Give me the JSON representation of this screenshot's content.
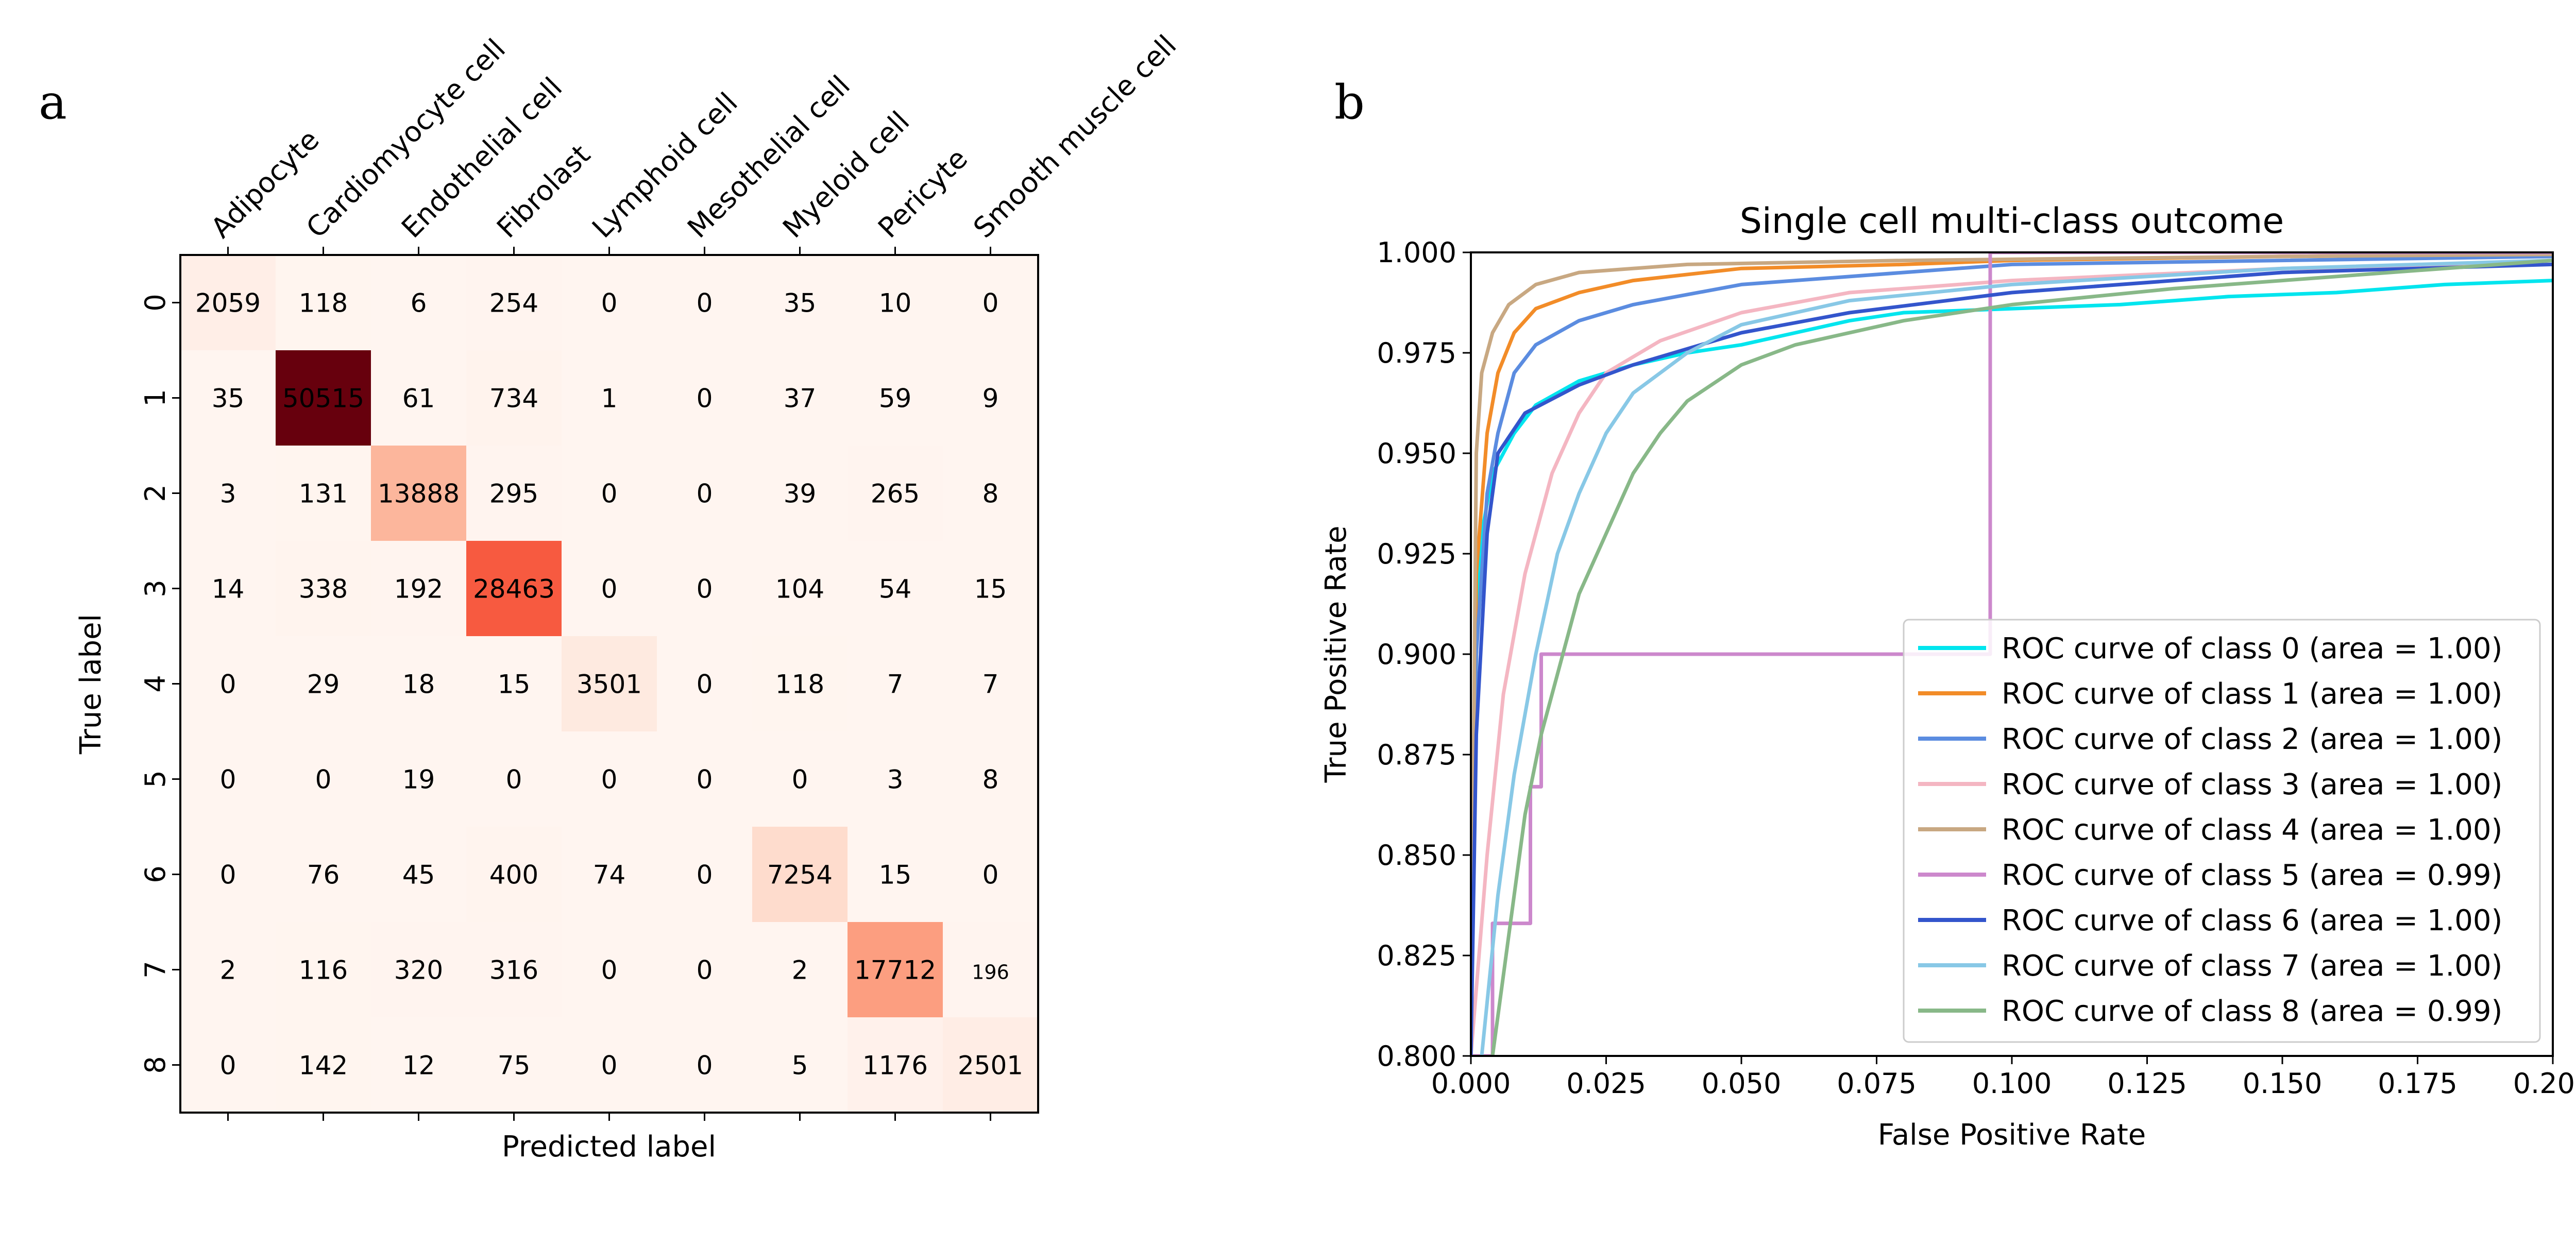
{
  "panels": {
    "a": "a",
    "b": "b"
  },
  "chart_data": [
    {
      "type": "heatmap",
      "title": "",
      "xlabel": "Predicted label",
      "ylabel": "True label",
      "col_labels": [
        "Adipocyte",
        "Cardiomyocyte cell",
        "Endothelial cell",
        "Fibrolast",
        "Lymphoid cell",
        "Mesothelial cell",
        "Myeloid cell",
        "Pericyte",
        "Smooth muscle cell"
      ],
      "row_labels": [
        "0",
        "1",
        "2",
        "3",
        "4",
        "5",
        "6",
        "7",
        "8"
      ],
      "colormap": "Reds",
      "values": [
        [
          2059,
          118,
          6,
          254,
          0,
          0,
          35,
          10,
          0
        ],
        [
          35,
          50515,
          61,
          734,
          1,
          0,
          37,
          59,
          9
        ],
        [
          3,
          131,
          13888,
          295,
          0,
          0,
          39,
          265,
          8
        ],
        [
          14,
          338,
          192,
          28463,
          0,
          0,
          104,
          54,
          15
        ],
        [
          0,
          29,
          18,
          15,
          3501,
          0,
          118,
          7,
          7
        ],
        [
          0,
          0,
          19,
          0,
          0,
          0,
          0,
          3,
          8
        ],
        [
          0,
          76,
          45,
          400,
          74,
          0,
          7254,
          15,
          0
        ],
        [
          2,
          116,
          320,
          316,
          0,
          0,
          2,
          17712,
          196
        ],
        [
          0,
          142,
          12,
          75,
          0,
          0,
          5,
          1176,
          2501
        ]
      ]
    },
    {
      "type": "line",
      "title": "Single cell multi-class outcome",
      "xlabel": "False Positive Rate",
      "ylabel": "True Positive Rate",
      "xlim": [
        0.0,
        0.2
      ],
      "ylim": [
        0.8,
        1.0
      ],
      "xticks": [
        "0.000",
        "0.025",
        "0.050",
        "0.075",
        "0.100",
        "0.125",
        "0.150",
        "0.175",
        "0.200"
      ],
      "yticks": [
        "0.800",
        "0.825",
        "0.850",
        "0.875",
        "0.900",
        "0.925",
        "0.950",
        "0.975",
        "1.000"
      ],
      "legend_position": "lower-right",
      "series": [
        {
          "name": "ROC curve of class 0 (area = 1.00)",
          "color": "#00e5ee",
          "points": [
            [
              0.0,
              0.8
            ],
            [
              0.001,
              0.9
            ],
            [
              0.002,
              0.93
            ],
            [
              0.004,
              0.945
            ],
            [
              0.008,
              0.955
            ],
            [
              0.012,
              0.962
            ],
            [
              0.02,
              0.968
            ],
            [
              0.03,
              0.972
            ],
            [
              0.04,
              0.975
            ],
            [
              0.05,
              0.977
            ],
            [
              0.06,
              0.98
            ],
            [
              0.07,
              0.983
            ],
            [
              0.08,
              0.985
            ],
            [
              0.1,
              0.986
            ],
            [
              0.12,
              0.987
            ],
            [
              0.13,
              0.988
            ],
            [
              0.14,
              0.989
            ],
            [
              0.16,
              0.99
            ],
            [
              0.18,
              0.992
            ],
            [
              0.2,
              0.993
            ]
          ]
        },
        {
          "name": "ROC curve of class 1 (area = 1.00)",
          "color": "#f28c28",
          "points": [
            [
              0.0,
              0.8
            ],
            [
              0.001,
              0.92
            ],
            [
              0.003,
              0.955
            ],
            [
              0.005,
              0.97
            ],
            [
              0.008,
              0.98
            ],
            [
              0.012,
              0.986
            ],
            [
              0.02,
              0.99
            ],
            [
              0.03,
              0.993
            ],
            [
              0.05,
              0.996
            ],
            [
              0.08,
              0.997
            ],
            [
              0.1,
              0.998
            ],
            [
              0.15,
              0.999
            ],
            [
              0.2,
              0.9995
            ]
          ]
        },
        {
          "name": "ROC curve of class 2 (area = 1.00)",
          "color": "#5b8ce0",
          "points": [
            [
              0.0,
              0.8
            ],
            [
              0.001,
              0.9
            ],
            [
              0.003,
              0.94
            ],
            [
              0.005,
              0.955
            ],
            [
              0.008,
              0.97
            ],
            [
              0.012,
              0.977
            ],
            [
              0.02,
              0.983
            ],
            [
              0.03,
              0.987
            ],
            [
              0.05,
              0.992
            ],
            [
              0.08,
              0.995
            ],
            [
              0.1,
              0.997
            ],
            [
              0.15,
              0.998
            ],
            [
              0.2,
              0.999
            ]
          ]
        },
        {
          "name": "ROC curve of class 3 (area = 1.00)",
          "color": "#f4b6c2",
          "points": [
            [
              0.0,
              0.8
            ],
            [
              0.003,
              0.85
            ],
            [
              0.006,
              0.89
            ],
            [
              0.01,
              0.92
            ],
            [
              0.015,
              0.945
            ],
            [
              0.02,
              0.96
            ],
            [
              0.025,
              0.97
            ],
            [
              0.035,
              0.978
            ],
            [
              0.05,
              0.985
            ],
            [
              0.07,
              0.99
            ],
            [
              0.1,
              0.993
            ],
            [
              0.15,
              0.996
            ],
            [
              0.2,
              0.997
            ]
          ]
        },
        {
          "name": "ROC curve of class 4 (area = 1.00)",
          "color": "#c8a882",
          "points": [
            [
              0.0,
              0.8
            ],
            [
              0.001,
              0.95
            ],
            [
              0.002,
              0.97
            ],
            [
              0.004,
              0.98
            ],
            [
              0.007,
              0.987
            ],
            [
              0.012,
              0.992
            ],
            [
              0.02,
              0.995
            ],
            [
              0.04,
              0.997
            ],
            [
              0.08,
              0.998
            ],
            [
              0.15,
              0.999
            ],
            [
              0.2,
              0.9995
            ]
          ]
        },
        {
          "name": "ROC curve of class 5 (area = 0.99)",
          "color": "#cc88cc",
          "points": [
            [
              0.0,
              0.8
            ],
            [
              0.004,
              0.8
            ],
            [
              0.004,
              0.833
            ],
            [
              0.011,
              0.833
            ],
            [
              0.011,
              0.867
            ],
            [
              0.013,
              0.867
            ],
            [
              0.013,
              0.9
            ],
            [
              0.096,
              0.9
            ],
            [
              0.096,
              1.0
            ],
            [
              0.2,
              1.0
            ]
          ]
        },
        {
          "name": "ROC curve of class 6 (area = 1.00)",
          "color": "#3355cc",
          "points": [
            [
              0.0,
              0.8
            ],
            [
              0.001,
              0.88
            ],
            [
              0.003,
              0.93
            ],
            [
              0.005,
              0.95
            ],
            [
              0.01,
              0.96
            ],
            [
              0.02,
              0.967
            ],
            [
              0.03,
              0.972
            ],
            [
              0.05,
              0.98
            ],
            [
              0.07,
              0.985
            ],
            [
              0.1,
              0.99
            ],
            [
              0.15,
              0.995
            ],
            [
              0.2,
              0.997
            ]
          ]
        },
        {
          "name": "ROC curve of class 7 (area = 1.00)",
          "color": "#88c8e6",
          "points": [
            [
              0.002,
              0.8
            ],
            [
              0.005,
              0.84
            ],
            [
              0.008,
              0.87
            ],
            [
              0.012,
              0.9
            ],
            [
              0.016,
              0.925
            ],
            [
              0.02,
              0.94
            ],
            [
              0.025,
              0.955
            ],
            [
              0.03,
              0.965
            ],
            [
              0.04,
              0.975
            ],
            [
              0.05,
              0.982
            ],
            [
              0.07,
              0.988
            ],
            [
              0.1,
              0.992
            ],
            [
              0.15,
              0.996
            ],
            [
              0.2,
              0.998
            ]
          ]
        },
        {
          "name": "ROC curve of class 8 (area = 0.99)",
          "color": "#88b888",
          "points": [
            [
              0.004,
              0.8
            ],
            [
              0.007,
              0.83
            ],
            [
              0.01,
              0.86
            ],
            [
              0.013,
              0.88
            ],
            [
              0.017,
              0.9
            ],
            [
              0.02,
              0.915
            ],
            [
              0.025,
              0.93
            ],
            [
              0.03,
              0.945
            ],
            [
              0.035,
              0.955
            ],
            [
              0.04,
              0.963
            ],
            [
              0.05,
              0.972
            ],
            [
              0.06,
              0.977
            ],
            [
              0.08,
              0.983
            ],
            [
              0.1,
              0.987
            ],
            [
              0.13,
              0.991
            ],
            [
              0.15,
              0.993
            ],
            [
              0.18,
              0.996
            ],
            [
              0.2,
              0.998
            ]
          ]
        }
      ]
    }
  ]
}
